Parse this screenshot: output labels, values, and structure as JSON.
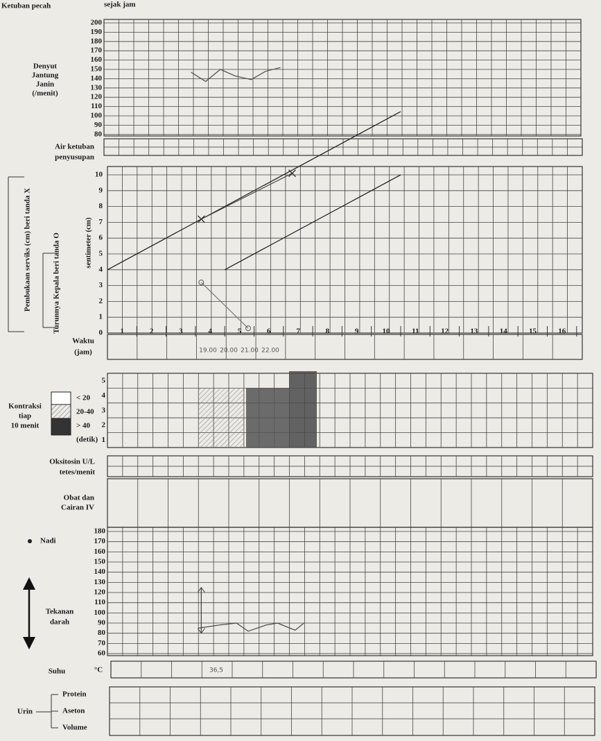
{
  "header": {
    "ruptured_label": "Ketuban pecah",
    "since_label": "sejak jam"
  },
  "fetal_heart": {
    "label_lines": [
      "Denyut",
      "Jantung",
      "Janin",
      "(/menit)"
    ],
    "yticks": [
      200,
      190,
      180,
      170,
      160,
      150,
      140,
      130,
      120,
      110,
      100,
      90,
      80
    ],
    "hours": [
      2.85,
      3.35,
      3.85,
      4.35,
      4.9,
      5.4,
      5.9
    ],
    "values": [
      147,
      137,
      150,
      143,
      139,
      148,
      152
    ]
  },
  "amniotic": {
    "label_lines": [
      "Air ketuban",
      "penyusupan"
    ]
  },
  "cervix": {
    "side_label_cervix": "Pembukaan serviks (cm) beri tanda X",
    "side_label_descent": "Turunnya Kepala beri tanda O",
    "axis_label": "sentimeter (cm)",
    "yticks": [
      10,
      9,
      8,
      7,
      6,
      5,
      4,
      3,
      2,
      1,
      0
    ],
    "xticks": [
      1,
      2,
      3,
      4,
      5,
      6,
      7,
      8,
      9,
      10,
      11,
      12,
      13,
      14,
      15,
      16
    ],
    "dilation": {
      "hours": [
        3.2,
        6.3
      ],
      "values": [
        7.2,
        10.1
      ]
    },
    "descent": {
      "hours": [
        3.2,
        4.8
      ],
      "values": [
        3.2,
        0.3
      ]
    }
  },
  "time_row": {
    "label_lines": [
      "Waktu",
      "(jam)"
    ],
    "entries": [
      "19.00",
      "20.00",
      "21.00",
      "22.00"
    ]
  },
  "contractions": {
    "label_lines": [
      "Kontraksi",
      "tiap",
      "10 menit"
    ],
    "legend": [
      "< 20",
      "20-40",
      "> 40",
      "(detik)"
    ],
    "yticks": [
      5,
      4,
      3,
      2,
      1
    ]
  },
  "oxytocin": {
    "label": "Oksitosin U/L",
    "sublabel": "tetes/menit"
  },
  "drugs": {
    "label_lines": [
      "Obat dan",
      "Cairan IV"
    ]
  },
  "vitals": {
    "pulse_label": "Nadi",
    "bp_label_lines": [
      "Tekanan",
      "darah"
    ],
    "yticks": [
      180,
      170,
      160,
      150,
      140,
      130,
      120,
      110,
      100,
      90,
      80,
      70,
      60
    ],
    "pulse": {
      "hours": [
        3.1,
        3.8,
        4.4,
        4.8,
        5.4,
        5.8,
        6.4,
        6.7
      ],
      "values": [
        85,
        88,
        90,
        82,
        88,
        90,
        83,
        90
      ]
    },
    "blood_pressure": {
      "hour": 3.2,
      "systolic": 125,
      "diastolic": 80
    }
  },
  "temperature": {
    "label": "Suhu",
    "unit": "°C",
    "entry": "36,5"
  },
  "urine": {
    "label": "Urin",
    "rows": [
      "Protein",
      "Aseton",
      "Volume"
    ]
  }
}
